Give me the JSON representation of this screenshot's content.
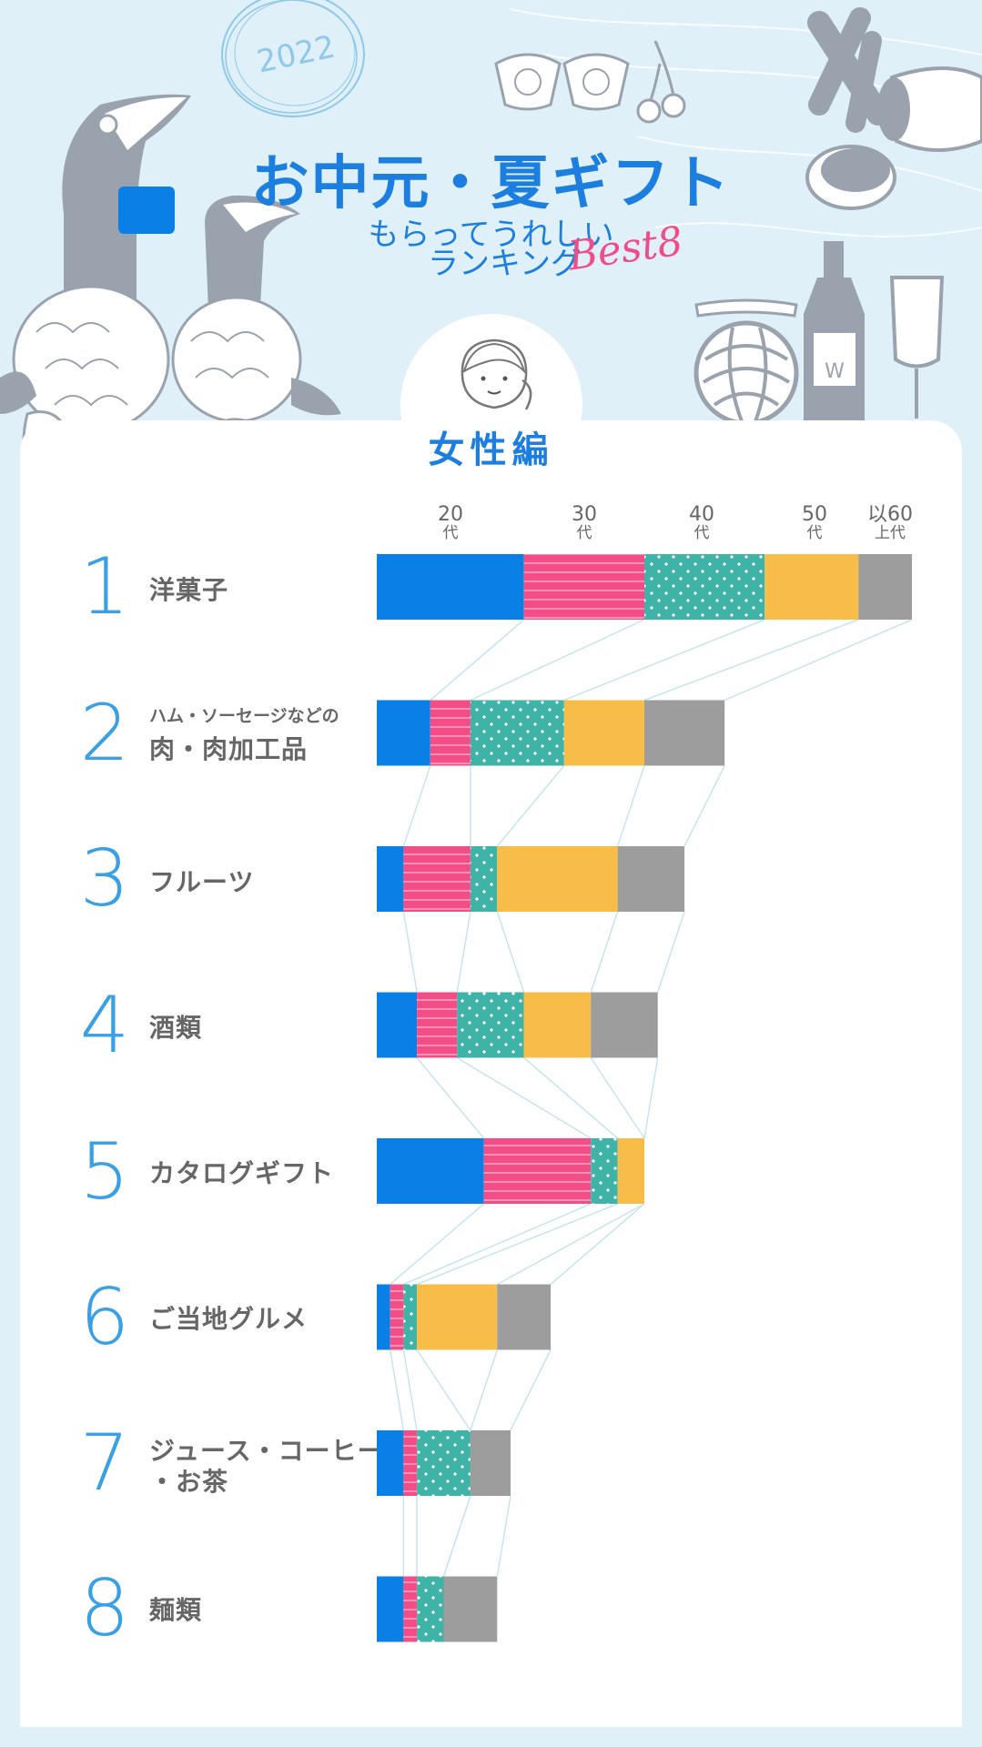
{
  "header": {
    "year": "2022",
    "title": "お中元・夏ギフト",
    "subtitle_line1": "もらってうれしい",
    "subtitle_line2": "ランキング",
    "best_label": "Best8"
  },
  "section": {
    "title": "女性編"
  },
  "colors": {
    "age20": "#0a7fe6",
    "age30": "#f34d88",
    "age40": "#3fb3a7",
    "age50": "#f7bd48",
    "age60": "#9d9d9d",
    "rank_number": "#3aa0e6",
    "title": "#1c7fe0",
    "background": "#dff0f8"
  },
  "chart_data": {
    "type": "bar",
    "orientation": "horizontal",
    "stacked": true,
    "title": "女性編",
    "series": [
      {
        "name": "20代",
        "label_top": "20",
        "label_bottom": "代",
        "values": [
          22,
          8,
          4,
          6,
          16,
          2,
          4,
          4
        ]
      },
      {
        "name": "30代",
        "label_top": "30",
        "label_bottom": "代",
        "values": [
          18,
          6,
          10,
          6,
          16,
          2,
          2,
          2
        ]
      },
      {
        "name": "40代",
        "label_top": "40",
        "label_bottom": "代",
        "values": [
          18,
          14,
          4,
          10,
          4,
          2,
          8,
          4
        ]
      },
      {
        "name": "50代",
        "label_top": "50",
        "label_bottom": "代",
        "values": [
          14,
          12,
          18,
          10,
          4,
          12,
          0,
          0
        ]
      },
      {
        "name": "60代以上",
        "label_top": "以60",
        "label_bottom": "上代",
        "values": [
          8,
          12,
          10,
          10,
          0,
          8,
          6,
          8
        ]
      }
    ],
    "categories": [
      {
        "rank": "1",
        "label": "洋菓子"
      },
      {
        "rank": "2",
        "label": "肉・肉加工品",
        "sublabel": "ハム・ソーセージなどの"
      },
      {
        "rank": "3",
        "label": "フルーツ"
      },
      {
        "rank": "4",
        "label": "酒類"
      },
      {
        "rank": "5",
        "label": "カタログギフト"
      },
      {
        "rank": "6",
        "label": "ご当地グルメ"
      },
      {
        "rank": "7",
        "label": "ジュース・コーヒー",
        "label2": "・お茶"
      },
      {
        "rank": "8",
        "label": "麺類"
      }
    ],
    "legend": "top"
  }
}
